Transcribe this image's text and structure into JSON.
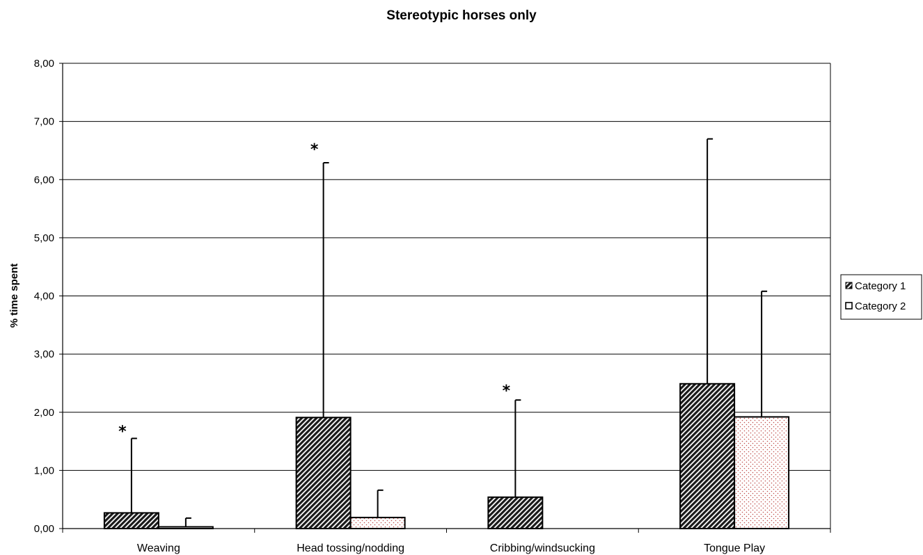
{
  "chart_data": {
    "type": "bar",
    "title": "Stereotypic horses only",
    "xlabel": "",
    "ylabel": "% time spent",
    "ylim": [
      0,
      8
    ],
    "yticks": [
      "0,00",
      "1,00",
      "2,00",
      "3,00",
      "4,00",
      "5,00",
      "6,00",
      "7,00",
      "8,00"
    ],
    "grid": true,
    "legend_position": "right",
    "categories": [
      "Weaving",
      "Head tossing/nodding",
      "Cribbing/windsucking",
      "Tongue Play"
    ],
    "series": [
      {
        "name": "Category 1",
        "pattern": "diagonal-hatch",
        "fill_color": "#1a1a1a",
        "values": [
          0.27,
          1.91,
          0.54,
          2.49
        ],
        "error_upper": [
          1.55,
          6.29,
          2.21,
          6.7
        ]
      },
      {
        "name": "Category 2",
        "pattern": "dotted",
        "fill_color": "#c0504d",
        "values": [
          0.03,
          0.19,
          0.0,
          1.92
        ],
        "error_upper": [
          0.18,
          0.66,
          null,
          4.08
        ]
      }
    ],
    "annotations": [
      {
        "text": "*",
        "category": "Weaving",
        "y": 1.75
      },
      {
        "text": "*",
        "category": "Head tossing/nodding",
        "y": 6.6
      },
      {
        "text": "*",
        "category": "Cribbing/windsucking",
        "y": 2.45
      }
    ]
  }
}
